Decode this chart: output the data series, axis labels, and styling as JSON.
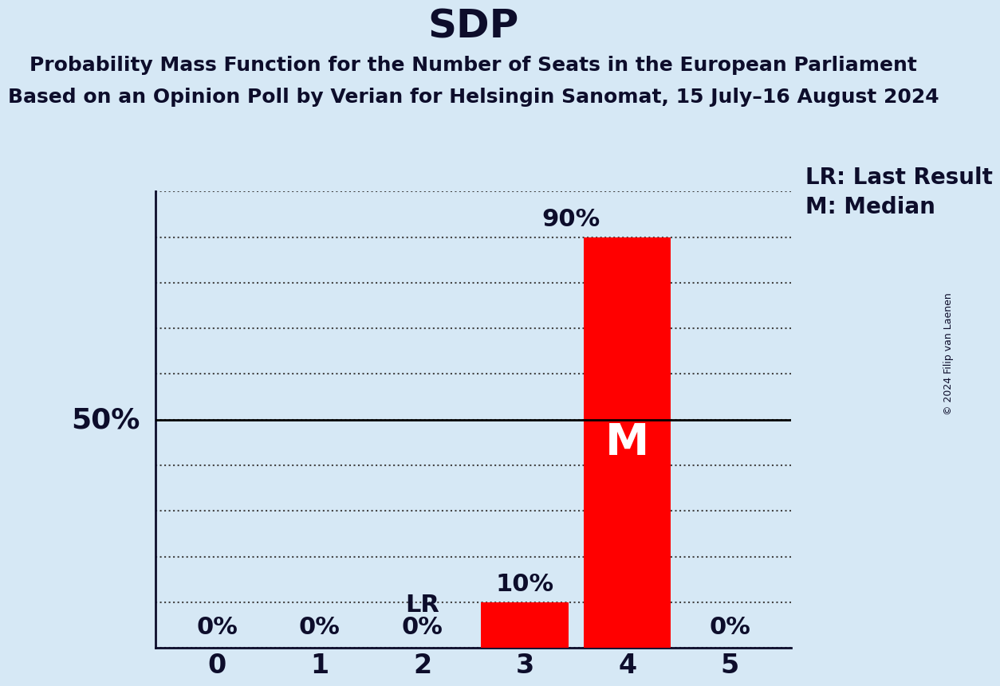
{
  "title": "SDP",
  "subtitle_line1": "Probability Mass Function for the Number of Seats in the European Parliament",
  "subtitle_line2": "Based on an Opinion Poll by Verian for Helsingin Sanomat, 15 July–16 August 2024",
  "copyright": "© 2024 Filip van Laenen",
  "seats": [
    0,
    1,
    2,
    3,
    4,
    5
  ],
  "probabilities": [
    0,
    0,
    0,
    10,
    90,
    0
  ],
  "bar_color": "#ff0000",
  "background_color": "#d6e8f5",
  "last_result_seat": 2,
  "median_seat": 4,
  "ylabel_50": "50%",
  "legend_lr": "LR: Last Result",
  "legend_m": "M: Median",
  "annotation_90": "90%",
  "annotation_10": "10%",
  "ylim": [
    0,
    100
  ],
  "yticks": [
    0,
    10,
    20,
    30,
    40,
    50,
    60,
    70,
    80,
    90,
    100
  ],
  "title_fontsize": 36,
  "subtitle_fontsize": 18,
  "bar_label_fontsize": 22,
  "axis_label_fontsize": 24,
  "legend_fontsize": 20,
  "fifty_label_fontsize": 26,
  "median_m_fontsize": 40
}
